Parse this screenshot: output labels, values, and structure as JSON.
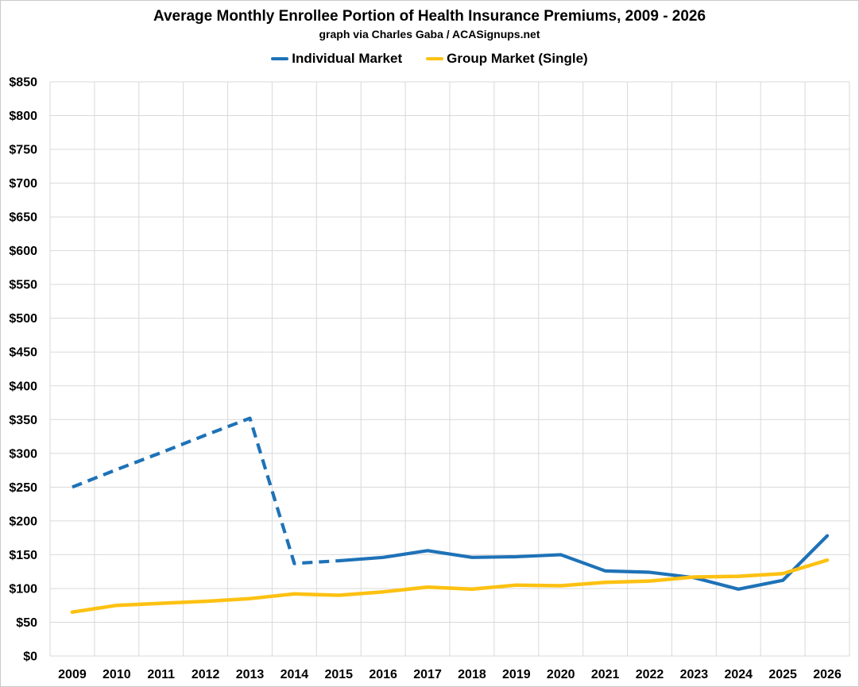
{
  "chart_data": {
    "type": "line",
    "title": "Average Monthly Enrollee Portion of Health Insurance Premiums, 2009 - 2026",
    "subtitle": "graph via Charles Gaba / ACASignups.net",
    "categories": [
      "2009",
      "2010",
      "2011",
      "2012",
      "2013",
      "2014",
      "2015",
      "2016",
      "2017",
      "2018",
      "2019",
      "2020",
      "2021",
      "2022",
      "2023",
      "2024",
      "2025",
      "2026"
    ],
    "series": [
      {
        "name": "Individual Market",
        "color": "#1e72b7",
        "values": [
          250,
          276,
          301,
          327,
          352,
          137,
          141,
          146,
          156,
          146,
          147,
          150,
          126,
          124,
          116,
          99,
          112,
          178
        ],
        "line_style": "dashed 2009-2015, solid 2015-2026",
        "dashed_until_category": "2015"
      },
      {
        "name": "Group Market (Single)",
        "color": "#fdc112",
        "values": [
          65,
          75,
          78,
          81,
          85,
          92,
          90,
          95,
          102,
          99,
          105,
          104,
          109,
          111,
          117,
          118,
          122,
          142
        ],
        "line_style": "solid"
      }
    ],
    "ylim": [
      0,
      850
    ],
    "y_tick_step": 50,
    "y_tick_labels": [
      "$0",
      "$50",
      "$100",
      "$150",
      "$200",
      "$250",
      "$300",
      "$350",
      "$400",
      "$450",
      "$500",
      "$550",
      "$600",
      "$650",
      "$700",
      "$750",
      "$800",
      "$850"
    ],
    "grid": true,
    "legend_position": "top",
    "gridline_color": "#d9d9d9",
    "text_color": "#000000"
  }
}
